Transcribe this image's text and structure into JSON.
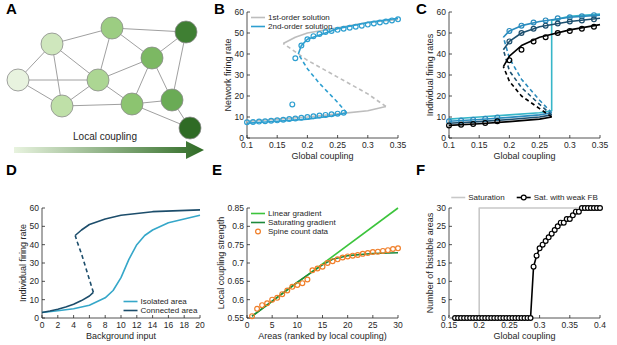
{
  "chart_data": [
    {
      "type": "network",
      "panel": "A",
      "nodes": [
        {
          "color": "#e8f3df"
        },
        {
          "color": "#cfe7bd"
        },
        {
          "color": "#bfe0a8"
        },
        {
          "color": "#acd693"
        },
        {
          "color": "#9ccd82"
        },
        {
          "color": "#8cc470"
        },
        {
          "color": "#7cb863"
        },
        {
          "color": "#6aab55"
        },
        {
          "color": "#3f7f33"
        },
        {
          "color": "#2f6b25"
        }
      ],
      "edges": [
        [
          0,
          1
        ],
        [
          0,
          2
        ],
        [
          0,
          3
        ],
        [
          1,
          2
        ],
        [
          1,
          3
        ],
        [
          1,
          4
        ],
        [
          2,
          3
        ],
        [
          2,
          5
        ],
        [
          3,
          4
        ],
        [
          3,
          5
        ],
        [
          3,
          6
        ],
        [
          4,
          6
        ],
        [
          4,
          8
        ],
        [
          5,
          6
        ],
        [
          5,
          7
        ],
        [
          5,
          9
        ],
        [
          6,
          7
        ],
        [
          6,
          8
        ],
        [
          7,
          8
        ],
        [
          7,
          9
        ]
      ],
      "annotation": "Local coupling"
    },
    {
      "type": "line",
      "panel": "B",
      "xlabel": "Global coupling",
      "ylabel": "Network firing rate",
      "xlim": [
        0.1,
        0.35
      ],
      "xticks": [
        0.1,
        0.15,
        0.2,
        0.25,
        0.3,
        0.35
      ],
      "ylim": [
        0,
        60
      ],
      "yticks": [
        0,
        10,
        20,
        30,
        40,
        50,
        60
      ],
      "legend": "northwest",
      "series": [
        {
          "name": "1st-order solution",
          "color": "#bdbdbd",
          "line_style": "solid",
          "x": [
            0.1,
            0.15,
            0.2,
            0.25,
            0.3,
            0.33
          ],
          "values": [
            8,
            9,
            10,
            11.5,
            13,
            15
          ]
        },
        {
          "color": "#bdbdbd",
          "line_style": "dashed",
          "x": [
            0.33,
            0.3,
            0.25,
            0.2,
            0.17,
            0.16
          ],
          "values": [
            15,
            21,
            29,
            37,
            43,
            45
          ]
        },
        {
          "color": "#bdbdbd",
          "line_style": "solid",
          "x": [
            0.16,
            0.18,
            0.2,
            0.25,
            0.3,
            0.35
          ],
          "values": [
            45,
            48,
            50,
            52.5,
            55,
            56.5
          ]
        },
        {
          "name": "2nd-order solution",
          "color": "#2e9fd0",
          "line_style": "solid",
          "x": [
            0.1,
            0.15,
            0.2,
            0.24,
            0.265
          ],
          "values": [
            7,
            8,
            9,
            10.5,
            12
          ]
        },
        {
          "color": "#2e9fd0",
          "line_style": "dashed",
          "x": [
            0.265,
            0.25,
            0.22,
            0.2,
            0.185
          ],
          "values": [
            12,
            17,
            26,
            33,
            40
          ]
        },
        {
          "color": "#2e9fd0",
          "line_style": "solid",
          "x": [
            0.185,
            0.19,
            0.2,
            0.25,
            0.3,
            0.35
          ],
          "values": [
            40,
            44,
            47,
            52,
            55,
            57
          ]
        },
        {
          "type": "scatter",
          "marker": "circle",
          "color": "#2e9fd0",
          "x": [
            0.1,
            0.11,
            0.12,
            0.13,
            0.14,
            0.15,
            0.16,
            0.17,
            0.18,
            0.19,
            0.2,
            0.21,
            0.22,
            0.23,
            0.24,
            0.25,
            0.26,
            0.175,
            0.18,
            0.19,
            0.2,
            0.21,
            0.22,
            0.23,
            0.24,
            0.25,
            0.26,
            0.27,
            0.28,
            0.29,
            0.3,
            0.31,
            0.32,
            0.33,
            0.34,
            0.35
          ],
          "values": [
            7.5,
            7.6,
            7.8,
            8,
            8.2,
            8.4,
            8.7,
            9,
            9.3,
            9.6,
            10,
            10.3,
            10.7,
            11,
            11.3,
            11.6,
            12,
            16,
            38,
            44,
            47,
            48.5,
            49.5,
            50.5,
            51,
            51.5,
            52,
            52.5,
            53,
            53.5,
            54,
            54.5,
            55,
            55.5,
            56,
            56.5
          ]
        }
      ]
    },
    {
      "type": "line",
      "panel": "C",
      "xlabel": "Global coupling",
      "ylabel": "Individual firing rates",
      "xlim": [
        0.1,
        0.35
      ],
      "xticks": [
        0.1,
        0.15,
        0.2,
        0.25,
        0.3,
        0.35
      ],
      "ylim": [
        0,
        60
      ],
      "yticks": [
        0,
        10,
        20,
        30,
        40,
        50,
        60
      ],
      "series": [
        {
          "color": "#37b6c8",
          "line_style": "solid",
          "x": [
            0.1,
            0.15,
            0.2,
            0.25,
            0.27,
            0.27,
            0.3,
            0.35
          ],
          "values": [
            9,
            10,
            11,
            12,
            13,
            56,
            58,
            59
          ]
        },
        {
          "color": "#2b8cbe",
          "line_style": "solid",
          "x": [
            0.1,
            0.15,
            0.2,
            0.25,
            0.27
          ],
          "values": [
            8,
            8.8,
            9.8,
            11,
            12
          ]
        },
        {
          "color": "#2b8cbe",
          "line_style": "dashed",
          "x": [
            0.27,
            0.25,
            0.22,
            0.2,
            0.19
          ],
          "values": [
            12,
            18,
            28,
            38,
            48
          ]
        },
        {
          "color": "#2b8cbe",
          "line_style": "solid",
          "x": [
            0.19,
            0.2,
            0.22,
            0.25,
            0.3,
            0.35
          ],
          "values": [
            48,
            51,
            53.5,
            55.5,
            57.5,
            58.5
          ]
        },
        {
          "color": "#1d4f6e",
          "line_style": "solid",
          "x": [
            0.1,
            0.15,
            0.2,
            0.25,
            0.27
          ],
          "values": [
            7,
            7.8,
            8.8,
            10,
            11
          ]
        },
        {
          "color": "#1d4f6e",
          "line_style": "dashed",
          "x": [
            0.27,
            0.25,
            0.22,
            0.2,
            0.19
          ],
          "values": [
            11,
            16,
            24,
            32,
            42
          ]
        },
        {
          "color": "#1d4f6e",
          "line_style": "solid",
          "x": [
            0.19,
            0.2,
            0.22,
            0.25,
            0.3,
            0.35
          ],
          "values": [
            42,
            46,
            50,
            53,
            55.5,
            57
          ]
        },
        {
          "color": "#000000",
          "line_style": "solid",
          "x": [
            0.1,
            0.15,
            0.2,
            0.25,
            0.27
          ],
          "values": [
            6,
            6.8,
            7.8,
            9,
            10
          ]
        },
        {
          "color": "#000000",
          "line_style": "dashed",
          "x": [
            0.27,
            0.25,
            0.22,
            0.2,
            0.19
          ],
          "values": [
            10,
            14,
            20,
            27,
            34
          ]
        },
        {
          "color": "#000000",
          "line_style": "solid",
          "x": [
            0.19,
            0.2,
            0.22,
            0.25,
            0.3,
            0.35
          ],
          "values": [
            34,
            39,
            44,
            48,
            51.5,
            54
          ]
        },
        {
          "type": "scatter",
          "marker": "circle",
          "color": "#2b8cbe",
          "x": [
            0.1,
            0.12,
            0.14,
            0.16,
            0.18,
            0.2,
            0.22,
            0.24,
            0.26,
            0.28,
            0.3,
            0.32,
            0.34
          ],
          "values": [
            8,
            8.3,
            8.7,
            9.2,
            9.8,
            51,
            53.5,
            55,
            56,
            57,
            57.5,
            58,
            58.5
          ]
        },
        {
          "type": "scatter",
          "marker": "circle",
          "color": "#1d4f6e",
          "x": [
            0.2,
            0.22,
            0.24,
            0.26,
            0.28,
            0.3,
            0.32,
            0.34
          ],
          "values": [
            46,
            50,
            52,
            53.5,
            54.5,
            55.5,
            56,
            56.5
          ]
        },
        {
          "type": "scatter",
          "marker": "circle",
          "color": "#000000",
          "x": [
            0.1,
            0.12,
            0.14,
            0.16,
            0.18,
            0.2,
            0.22,
            0.24,
            0.26,
            0.28,
            0.3,
            0.32,
            0.34
          ],
          "values": [
            6,
            6.3,
            6.7,
            7.2,
            8,
            37,
            42,
            46,
            48,
            50,
            51,
            52,
            53
          ]
        }
      ]
    },
    {
      "type": "line",
      "panel": "D",
      "xlabel": "Background input",
      "ylabel": "Individual firing rate",
      "xlim": [
        0,
        20
      ],
      "xticks": [
        0,
        2,
        4,
        6,
        8,
        10,
        12,
        14,
        16,
        18,
        20
      ],
      "ylim": [
        0,
        60
      ],
      "yticks": [
        0,
        10,
        20,
        30,
        40,
        50,
        60
      ],
      "legend": "southeast",
      "series": [
        {
          "name": "Isolated area",
          "color": "#35a7c9",
          "line_style": "solid",
          "x": [
            0,
            2,
            4,
            6,
            8,
            9,
            10,
            11,
            12,
            13,
            14,
            16,
            18,
            20
          ],
          "values": [
            3,
            4,
            5,
            7,
            11,
            15,
            22,
            32,
            40,
            45,
            48,
            52,
            54,
            56
          ]
        },
        {
          "name": "Connected area",
          "color": "#1c4d6b",
          "line_style": "solid",
          "x": [
            0,
            1,
            2,
            3,
            4,
            5,
            6,
            6.5
          ],
          "values": [
            3,
            3.8,
            4.8,
            6,
            7.5,
            9.5,
            12,
            14
          ]
        },
        {
          "color": "#1c4d6b",
          "line_style": "dashed",
          "x": [
            6.5,
            6,
            5.5,
            5,
            4.5,
            4.2
          ],
          "values": [
            14,
            21,
            28,
            35,
            41,
            45
          ]
        },
        {
          "color": "#1c4d6b",
          "line_style": "solid",
          "x": [
            4.2,
            5,
            6,
            8,
            10,
            14,
            20
          ],
          "values": [
            45,
            48,
            51,
            54,
            56,
            58,
            59
          ]
        }
      ]
    },
    {
      "type": "line",
      "panel": "E",
      "xlabel": "Areas (ranked by local coupling)",
      "ylabel": "Local coupling strength",
      "xlim": [
        0,
        30
      ],
      "xticks": [
        0,
        5,
        10,
        15,
        20,
        25,
        30
      ],
      "ylim": [
        0.55,
        0.85
      ],
      "yticks": [
        0.55,
        0.6,
        0.65,
        0.7,
        0.75,
        0.8,
        0.85
      ],
      "legend": "northwest",
      "series": [
        {
          "name": "Linear gradient",
          "color": "#3cc43c",
          "line_style": "solid",
          "x": [
            1,
            30
          ],
          "values": [
            0.555,
            0.85
          ]
        },
        {
          "name": "Saturating gradient",
          "color": "#1e8a3c",
          "line_style": "solid",
          "x": [
            1,
            5,
            10,
            15,
            17,
            20,
            25,
            30
          ],
          "values": [
            0.555,
            0.596,
            0.648,
            0.695,
            0.71,
            0.72,
            0.726,
            0.728
          ]
        },
        {
          "name": "Spine count data",
          "type": "scatter",
          "marker": "circle",
          "color": "#f07f2a",
          "x": [
            1,
            2,
            3,
            4,
            5,
            6,
            7,
            8,
            9,
            10,
            11,
            12,
            13,
            14,
            15,
            16,
            17,
            18,
            19,
            20,
            21,
            22,
            23,
            24,
            25,
            26,
            27,
            28,
            29,
            30
          ],
          "values": [
            0.555,
            0.575,
            0.585,
            0.59,
            0.6,
            0.605,
            0.615,
            0.625,
            0.635,
            0.64,
            0.645,
            0.655,
            0.68,
            0.685,
            0.69,
            0.7,
            0.705,
            0.71,
            0.715,
            0.718,
            0.72,
            0.722,
            0.725,
            0.727,
            0.73,
            0.731,
            0.733,
            0.735,
            0.738,
            0.74
          ]
        }
      ]
    },
    {
      "type": "line",
      "panel": "F",
      "xlabel": "Global coupling",
      "ylabel": "Number of bistable areas",
      "xlim": [
        0.15,
        0.4
      ],
      "xticks": [
        0.15,
        0.2,
        0.25,
        0.3,
        0.35,
        0.4
      ],
      "ylim": [
        0,
        30
      ],
      "yticks": [
        0,
        5,
        10,
        15,
        20,
        25,
        30
      ],
      "legend": "north",
      "series": [
        {
          "name": "Saturation",
          "color": "#c8c8c8",
          "line_style": "solid",
          "x": [
            0.15,
            0.2,
            0.2,
            0.4
          ],
          "values": [
            0,
            0,
            30,
            30
          ]
        },
        {
          "name": "Sat. with weak FB",
          "color": "#000000",
          "line_style": "solid",
          "marker": "circle",
          "x": [
            0.16,
            0.165,
            0.17,
            0.175,
            0.18,
            0.185,
            0.19,
            0.195,
            0.2,
            0.205,
            0.21,
            0.215,
            0.22,
            0.225,
            0.23,
            0.235,
            0.24,
            0.245,
            0.25,
            0.255,
            0.26,
            0.265,
            0.27,
            0.275,
            0.28,
            0.285,
            0.29,
            0.295,
            0.3,
            0.305,
            0.31,
            0.315,
            0.32,
            0.325,
            0.33,
            0.335,
            0.34,
            0.345,
            0.35,
            0.355,
            0.36,
            0.365,
            0.37,
            0.375,
            0.38,
            0.385,
            0.39,
            0.395,
            0.4
          ],
          "values": [
            0,
            0,
            0,
            0,
            0,
            0,
            0,
            0,
            0,
            0,
            0,
            0,
            0,
            0,
            0,
            0,
            0,
            0,
            0,
            0,
            0,
            0,
            0,
            0,
            0,
            0,
            14,
            17,
            19,
            20,
            21,
            22,
            23,
            24,
            25,
            26,
            26,
            27,
            27,
            28,
            29,
            29,
            30,
            30,
            30,
            30,
            30,
            30,
            30
          ]
        }
      ]
    }
  ]
}
